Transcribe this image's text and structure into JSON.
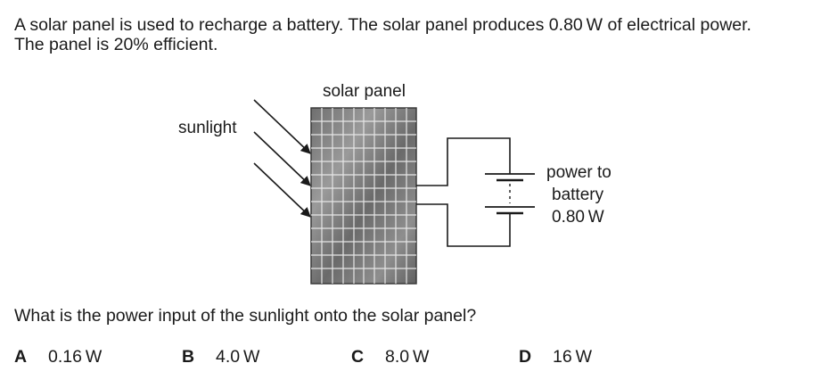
{
  "intro": {
    "line1": "A solar panel is used to recharge a battery. The solar panel produces 0.80 W of electrical power.",
    "line2": "The panel is 20% efficient."
  },
  "diagram": {
    "panel_label": "solar panel",
    "sunlight_label": "sunlight",
    "output_label_line1": "power to",
    "output_label_line2": "battery",
    "output_label_line3": "0.80 W"
  },
  "question": "What is the power input of the sunlight onto the solar panel?",
  "options": [
    {
      "letter": "A",
      "text": "0.16 W"
    },
    {
      "letter": "B",
      "text": "4.0 W"
    },
    {
      "letter": "C",
      "text": "8.0 W"
    },
    {
      "letter": "D",
      "text": "16 W"
    }
  ]
}
